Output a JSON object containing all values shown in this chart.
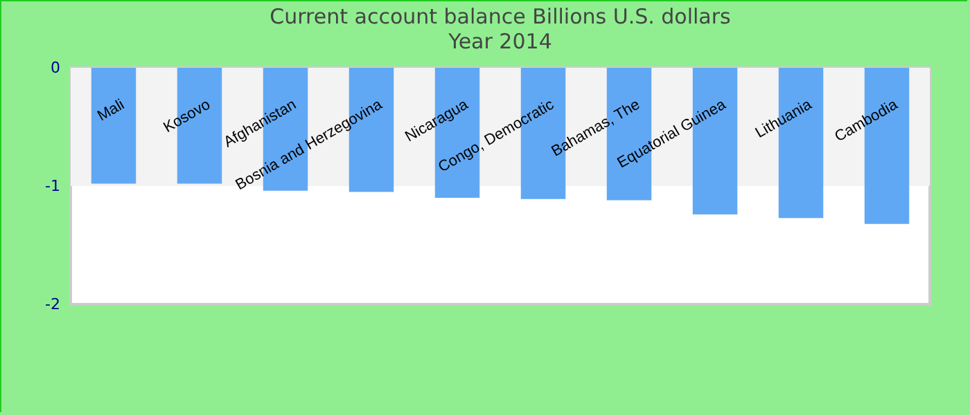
{
  "chart_data": {
    "type": "bar",
    "title": "Current account balance Billions U.S. dollars",
    "subtitle": "Year 2014",
    "categories": [
      "Mali",
      "Kosovo",
      "Afghanistan",
      "Bosnia and Herzegovina",
      "Nicaragua",
      "Congo, Democratic",
      "Bahamas, The",
      "Equatorial Guinea",
      "Lithuania",
      "Cambodia"
    ],
    "values": [
      -0.98,
      -0.98,
      -1.04,
      -1.05,
      -1.1,
      -1.11,
      -1.12,
      -1.24,
      -1.27,
      -1.32
    ],
    "color": "#61a8f4",
    "ylim": [
      -2,
      0
    ],
    "yticks": [
      0,
      -1,
      -2
    ],
    "bands": [
      {
        "axis": "y",
        "from": 0,
        "to": -1,
        "color": "#f3f3f3"
      }
    ]
  }
}
